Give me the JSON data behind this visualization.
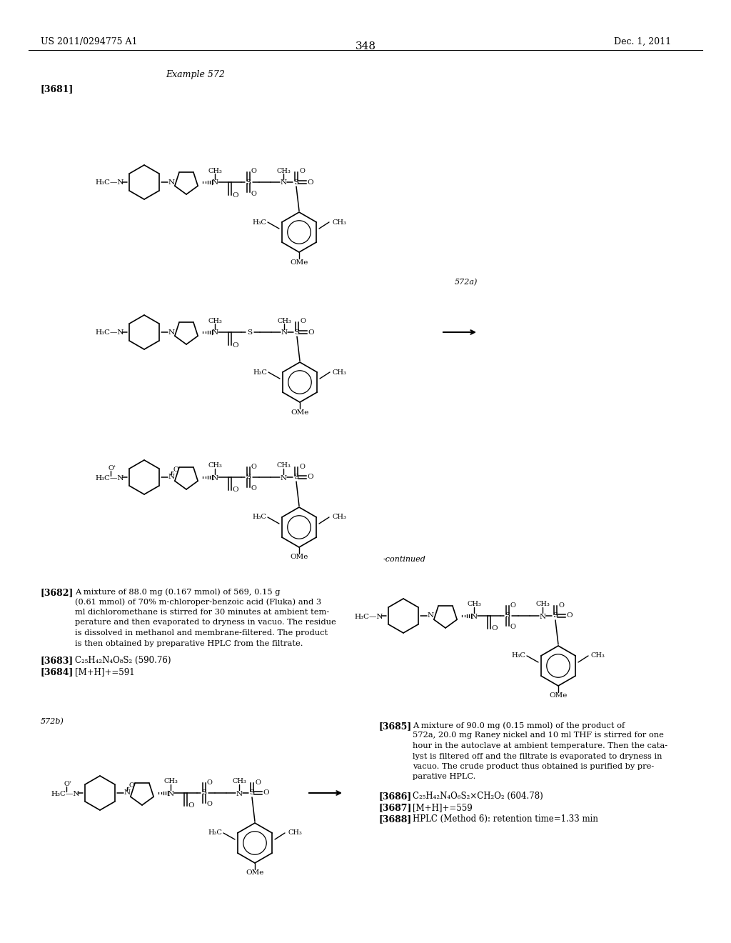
{
  "bg_color": "#ffffff",
  "header_left": "US 2011/0294775 A1",
  "header_right": "Dec. 1, 2011",
  "page_number": "348",
  "example_label": "Example 572",
  "ref_3681": "[3681]",
  "ref_572a": "572a)",
  "ref_572b": "572b)",
  "ref_3682": "[3682]",
  "ref_3683": "[3683]",
  "ref_3684": "[3684]",
  "ref_3685": "[3685]",
  "ref_3686": "[3686]",
  "ref_3687": "[3687]",
  "ref_3688": "[3688]",
  "continued_label": "-continued",
  "text_3682_lines": [
    "A mixture of 88.0 mg (0.167 mmol) of 569, 0.15 g",
    "(0.61 mmol) of 70% m-chloroper-benzoic acid (Fluka) and 3",
    "ml dichloromethane is stirred for 30 minutes at ambient tem-",
    "perature and then evaporated to dryness in vacuo. The residue",
    "is dissolved in methanol and membrane-filtered. The product",
    "is then obtained by preparative HPLC from the filtrate."
  ],
  "text_3683_val": "C₂₅H₄₂N₄O₈S₂ (590.76)",
  "text_3684_val": "[M+H]+=591",
  "text_3685_lines": [
    "A mixture of 90.0 mg (0.15 mmol) of the product of",
    "572a, 20.0 mg Raney nickel and 10 ml THF is stirred for one",
    "hour in the autoclave at ambient temperature. Then the cata-",
    "lyst is filtered off and the filtrate is evaporated to dryness in",
    "vacuo. The crude product thus obtained is purified by pre-",
    "parative HPLC."
  ],
  "text_3686_val": "C₂₅H₄₂N₄O₆S₂×CH₂O₂ (604.78)",
  "text_3687_val": "[M+H]+=559",
  "text_3688_val": "HPLC (Method 6): retention time=1.33 min"
}
